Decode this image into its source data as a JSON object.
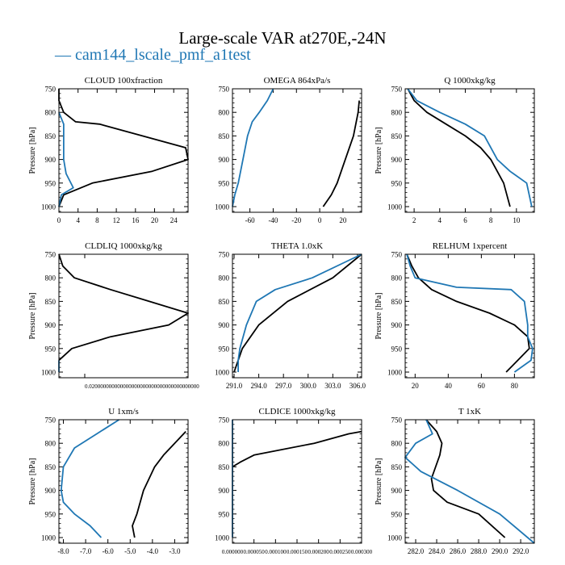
{
  "title": "Large-scale VAR at270E,-24N",
  "legend": {
    "label": "— cam144_lscale_pmf_a1test",
    "color": "#1f77b4"
  },
  "colors": {
    "model": "#1f77b4",
    "obs": "#000000"
  },
  "chart_data": [
    {
      "type": "line",
      "title": "CLOUD  100xfraction",
      "ylabel": "Pressure [hPa]",
      "ylim": [
        1012,
        750
      ],
      "yticks": [
        750,
        800,
        850,
        900,
        950,
        1000
      ],
      "xlim": [
        0,
        27
      ],
      "xticks": [
        0,
        4,
        8,
        12,
        16,
        20,
        24
      ],
      "xticklabels": [
        "0",
        "4",
        "8",
        "12",
        "16",
        "20",
        "24"
      ],
      "series": [
        {
          "role": "obs",
          "x": [
            0,
            0,
            1,
            3.5,
            8.5,
            26.5,
            27,
            19.5,
            7,
            1,
            0
          ],
          "y": [
            750,
            775,
            800,
            820,
            825,
            875,
            900,
            925,
            950,
            975,
            1000
          ]
        },
        {
          "role": "model",
          "x": [
            0,
            1,
            1,
            1,
            1.5,
            3,
            0.5,
            0
          ],
          "y": [
            800,
            825,
            850,
            900,
            930,
            960,
            975,
            1000
          ]
        }
      ]
    },
    {
      "type": "line",
      "title": "OMEGA  864xPa/s",
      "ylabel": "",
      "ylim": [
        1012,
        750
      ],
      "yticks": [
        750,
        800,
        850,
        900,
        950,
        1000
      ],
      "xlim": [
        -75,
        36
      ],
      "xticks": [
        -60,
        -40,
        -20,
        0,
        20
      ],
      "xticklabels": [
        "-60",
        "-40",
        "-20",
        "0",
        "20"
      ],
      "series": [
        {
          "role": "obs",
          "x": [
            34,
            33,
            29,
            22,
            15,
            10,
            3
          ],
          "y": [
            775,
            800,
            850,
            900,
            950,
            975,
            1000
          ]
        },
        {
          "role": "model",
          "x": [
            -40,
            -45,
            -52,
            -58,
            -62,
            -66,
            -70,
            -73,
            -75
          ],
          "y": [
            750,
            775,
            800,
            820,
            850,
            900,
            950,
            975,
            1000
          ]
        }
      ]
    },
    {
      "type": "line",
      "title": "Q  1000xkg/kg",
      "ylabel": "Pressure [hPa]",
      "ylim": [
        1012,
        750
      ],
      "yticks": [
        750,
        800,
        850,
        900,
        950,
        1000
      ],
      "xlim": [
        1.3,
        11.4
      ],
      "xticks": [
        2,
        4,
        6,
        8,
        10
      ],
      "xticklabels": [
        "2",
        "4",
        "6",
        "8",
        "10"
      ],
      "series": [
        {
          "role": "obs",
          "x": [
            1.5,
            2,
            3,
            4.5,
            6,
            7.2,
            8,
            9,
            9.5
          ],
          "y": [
            750,
            775,
            800,
            825,
            850,
            875,
            900,
            950,
            1000
          ]
        },
        {
          "role": "model",
          "x": [
            1.5,
            2.2,
            4,
            6,
            7.5,
            8.5,
            9.5,
            10.8,
            11.2
          ],
          "y": [
            750,
            775,
            800,
            825,
            850,
            900,
            925,
            950,
            1000
          ]
        }
      ]
    },
    {
      "type": "line",
      "title": "CLDLIQ  1000xkg/kg",
      "ylabel": "Pressure [hPa]",
      "ylim": [
        1012,
        750
      ],
      "yticks": [
        750,
        800,
        850,
        900,
        950,
        1000
      ],
      "xlim": [
        0,
        0.1
      ],
      "xticks": [
        0.02
      ],
      "xticklabels": [
        "0.020000000000000000000000000000000000000"
      ],
      "series": [
        {
          "role": "obs",
          "x": [
            0,
            0.003,
            0.012,
            0.04,
            0.07,
            0.1,
            0.085,
            0.04,
            0.01,
            0
          ],
          "y": [
            750,
            775,
            800,
            825,
            850,
            875,
            900,
            925,
            950,
            975
          ]
        },
        {
          "role": "model",
          "x": [
            0,
            0
          ],
          "y": [
            975,
            1000
          ]
        }
      ]
    },
    {
      "type": "line",
      "title": "THETA  1.0xK",
      "ylabel": "",
      "ylim": [
        1012,
        750
      ],
      "yticks": [
        750,
        800,
        850,
        900,
        950,
        1000
      ],
      "xlim": [
        290.8,
        306.5
      ],
      "xticks": [
        291,
        294,
        297,
        300,
        303,
        306
      ],
      "xticklabels": [
        "291.0",
        "294.0",
        "297.0",
        "300.0",
        "303.0",
        "306.0"
      ],
      "series": [
        {
          "role": "obs",
          "x": [
            306.5,
            303,
            297.5,
            294,
            292,
            291.5,
            291
          ],
          "y": [
            750,
            800,
            850,
            900,
            950,
            975,
            1000
          ]
        },
        {
          "role": "model",
          "x": [
            306.5,
            300.5,
            296,
            293.7,
            292.5,
            291.7,
            291.5,
            291.5
          ],
          "y": [
            750,
            800,
            825,
            850,
            900,
            950,
            975,
            1000
          ]
        }
      ]
    },
    {
      "type": "line",
      "title": "RELHUM  1xpercent",
      "ylabel": "Pressure [hPa]",
      "ylim": [
        1012,
        750
      ],
      "yticks": [
        750,
        800,
        850,
        900,
        950,
        1000
      ],
      "xlim": [
        14,
        92
      ],
      "xticks": [
        20,
        40,
        60,
        80
      ],
      "xticklabels": [
        "20",
        "40",
        "60",
        "80"
      ],
      "series": [
        {
          "role": "obs",
          "x": [
            15,
            18,
            22,
            30,
            45,
            65,
            80,
            88,
            89,
            82,
            75
          ],
          "y": [
            750,
            775,
            800,
            825,
            850,
            875,
            900,
            925,
            950,
            975,
            1000
          ]
        },
        {
          "role": "model",
          "x": [
            15,
            17,
            20,
            45,
            78,
            86,
            88,
            88,
            91,
            90,
            80
          ],
          "y": [
            750,
            775,
            800,
            820,
            825,
            850,
            900,
            925,
            950,
            975,
            1000
          ]
        }
      ]
    },
    {
      "type": "line",
      "title": "U  1xm/s",
      "ylabel": "Pressure [hPa]",
      "ylim": [
        1012,
        750
      ],
      "yticks": [
        750,
        800,
        850,
        900,
        950,
        1000
      ],
      "xlim": [
        -8.2,
        -2.4
      ],
      "xticks": [
        -8,
        -7,
        -6,
        -5,
        -4,
        -3
      ],
      "xticklabels": [
        "-8.0",
        "-7.0",
        "-6.0",
        "-5.0",
        "-4.0",
        "-3.0"
      ],
      "series": [
        {
          "role": "obs",
          "x": [
            -2.5,
            -3,
            -3.5,
            -3.9,
            -4.4,
            -4.7,
            -4.9,
            -4.8
          ],
          "y": [
            775,
            800,
            825,
            850,
            900,
            950,
            975,
            1000
          ]
        },
        {
          "role": "model",
          "x": [
            -5.5,
            -6.5,
            -7.5,
            -8,
            -8.1,
            -8,
            -7.5,
            -6.8,
            -6.3
          ],
          "y": [
            750,
            780,
            810,
            850,
            900,
            925,
            950,
            975,
            1000
          ]
        }
      ]
    },
    {
      "type": "line",
      "title": "CLDICE  1000xkg/kg",
      "ylabel": "",
      "ylim": [
        1012,
        750
      ],
      "yticks": [
        750,
        800,
        850,
        900,
        950,
        1000
      ],
      "xlim": [
        0,
        0.0003
      ],
      "xticks": [
        0,
        5e-05,
        0.0001,
        0.00015,
        0.0002,
        0.00025,
        0.0003
      ],
      "xticklabels": [
        "0.000000",
        "0.000050",
        "0.000100",
        "0.000150",
        "0.000200",
        "0.000250",
        "0.000300"
      ],
      "series": [
        {
          "role": "obs",
          "x": [
            0.0003,
            0.00027,
            0.00019,
            5e-05,
            1.8e-05,
            0
          ],
          "y": [
            775,
            780,
            800,
            825,
            840,
            850
          ]
        },
        {
          "role": "model",
          "x": [
            0,
            0
          ],
          "y": [
            750,
            1000
          ]
        }
      ]
    },
    {
      "type": "line",
      "title": "T  1xK",
      "ylabel": "Pressure [hPa]",
      "ylim": [
        1012,
        750
      ],
      "yticks": [
        750,
        800,
        850,
        900,
        950,
        1000
      ],
      "xlim": [
        281,
        293.3
      ],
      "xticks": [
        282,
        284,
        286,
        288,
        290,
        292
      ],
      "xticklabels": [
        "282.0",
        "284.0",
        "286.0",
        "288.0",
        "290.0",
        "292.0"
      ],
      "series": [
        {
          "role": "obs",
          "x": [
            283,
            284,
            284.5,
            284.3,
            283.5,
            283.7,
            285,
            288,
            290.5
          ],
          "y": [
            750,
            775,
            800,
            825,
            875,
            900,
            925,
            950,
            1000
          ]
        },
        {
          "role": "model",
          "x": [
            283,
            283.6,
            282,
            281,
            282.5,
            286,
            290,
            293.3
          ],
          "y": [
            750,
            780,
            800,
            830,
            860,
            900,
            950,
            1012
          ]
        }
      ]
    }
  ]
}
